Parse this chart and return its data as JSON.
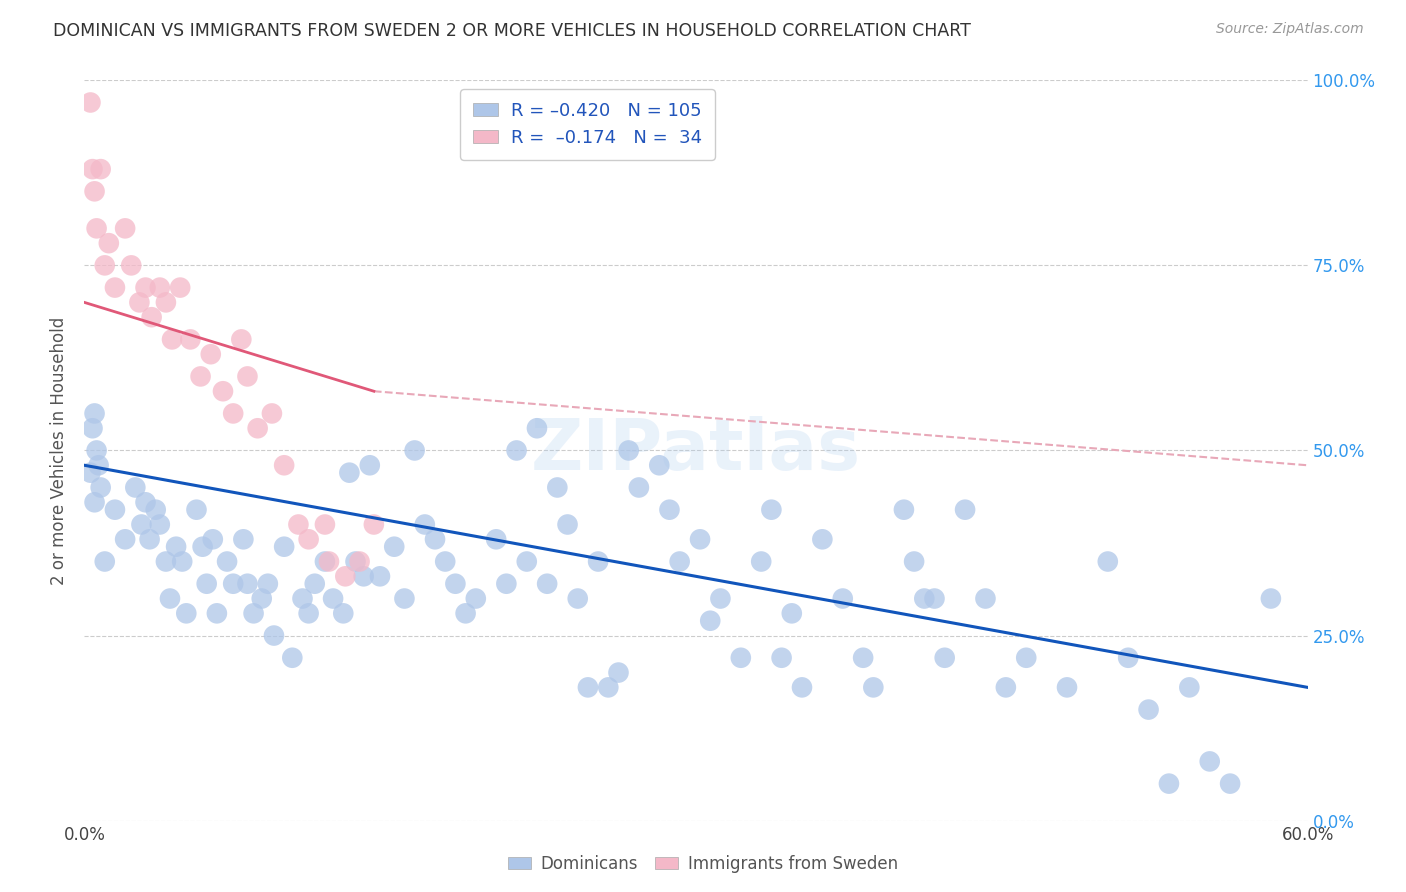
{
  "title": "DOMINICAN VS IMMIGRANTS FROM SWEDEN 2 OR MORE VEHICLES IN HOUSEHOLD CORRELATION CHART",
  "source": "Source: ZipAtlas.com",
  "ylabel_label": "2 or more Vehicles in Household",
  "xlim": [
    0,
    60
  ],
  "ylim": [
    0,
    100
  ],
  "blue_R": -0.42,
  "blue_N": 105,
  "pink_R": -0.174,
  "pink_N": 34,
  "blue_color": "#aec6e8",
  "blue_line_color": "#1155bb",
  "pink_color": "#f4b8c8",
  "pink_line_color": "#e05878",
  "pink_dashed_color": "#e8a8b8",
  "ytick_vals": [
    0,
    25,
    50,
    75,
    100
  ],
  "ytick_labels": [
    "0.0%",
    "25.0%",
    "50.0%",
    "75.0%",
    "100.0%"
  ],
  "xtick_vals": [
    0,
    60
  ],
  "xtick_labels": [
    "0.0%",
    "60.0%"
  ],
  "blue_scatter": [
    [
      0.3,
      47
    ],
    [
      0.4,
      53
    ],
    [
      0.5,
      43
    ],
    [
      0.5,
      55
    ],
    [
      0.6,
      50
    ],
    [
      0.7,
      48
    ],
    [
      0.8,
      45
    ],
    [
      1.0,
      35
    ],
    [
      1.5,
      42
    ],
    [
      2.0,
      38
    ],
    [
      2.5,
      45
    ],
    [
      2.8,
      40
    ],
    [
      3.0,
      43
    ],
    [
      3.2,
      38
    ],
    [
      3.5,
      42
    ],
    [
      3.7,
      40
    ],
    [
      4.0,
      35
    ],
    [
      4.2,
      30
    ],
    [
      4.5,
      37
    ],
    [
      4.8,
      35
    ],
    [
      5.0,
      28
    ],
    [
      5.5,
      42
    ],
    [
      5.8,
      37
    ],
    [
      6.0,
      32
    ],
    [
      6.3,
      38
    ],
    [
      6.5,
      28
    ],
    [
      7.0,
      35
    ],
    [
      7.3,
      32
    ],
    [
      7.8,
      38
    ],
    [
      8.0,
      32
    ],
    [
      8.3,
      28
    ],
    [
      8.7,
      30
    ],
    [
      9.0,
      32
    ],
    [
      9.3,
      25
    ],
    [
      9.8,
      37
    ],
    [
      10.2,
      22
    ],
    [
      10.7,
      30
    ],
    [
      11.0,
      28
    ],
    [
      11.3,
      32
    ],
    [
      11.8,
      35
    ],
    [
      12.2,
      30
    ],
    [
      12.7,
      28
    ],
    [
      13.0,
      47
    ],
    [
      13.3,
      35
    ],
    [
      13.7,
      33
    ],
    [
      14.0,
      48
    ],
    [
      14.5,
      33
    ],
    [
      15.2,
      37
    ],
    [
      15.7,
      30
    ],
    [
      16.2,
      50
    ],
    [
      16.7,
      40
    ],
    [
      17.2,
      38
    ],
    [
      17.7,
      35
    ],
    [
      18.2,
      32
    ],
    [
      18.7,
      28
    ],
    [
      19.2,
      30
    ],
    [
      20.2,
      38
    ],
    [
      20.7,
      32
    ],
    [
      21.2,
      50
    ],
    [
      21.7,
      35
    ],
    [
      22.2,
      53
    ],
    [
      22.7,
      32
    ],
    [
      23.2,
      45
    ],
    [
      23.7,
      40
    ],
    [
      24.2,
      30
    ],
    [
      24.7,
      18
    ],
    [
      25.2,
      35
    ],
    [
      25.7,
      18
    ],
    [
      26.2,
      20
    ],
    [
      26.7,
      50
    ],
    [
      27.2,
      45
    ],
    [
      28.2,
      48
    ],
    [
      28.7,
      42
    ],
    [
      29.2,
      35
    ],
    [
      30.2,
      38
    ],
    [
      30.7,
      27
    ],
    [
      31.2,
      30
    ],
    [
      32.2,
      22
    ],
    [
      33.2,
      35
    ],
    [
      33.7,
      42
    ],
    [
      34.2,
      22
    ],
    [
      34.7,
      28
    ],
    [
      35.2,
      18
    ],
    [
      36.2,
      38
    ],
    [
      37.2,
      30
    ],
    [
      38.2,
      22
    ],
    [
      38.7,
      18
    ],
    [
      40.2,
      42
    ],
    [
      40.7,
      35
    ],
    [
      41.2,
      30
    ],
    [
      41.7,
      30
    ],
    [
      42.2,
      22
    ],
    [
      43.2,
      42
    ],
    [
      44.2,
      30
    ],
    [
      45.2,
      18
    ],
    [
      46.2,
      22
    ],
    [
      48.2,
      18
    ],
    [
      50.2,
      35
    ],
    [
      51.2,
      22
    ],
    [
      52.2,
      15
    ],
    [
      53.2,
      5
    ],
    [
      54.2,
      18
    ],
    [
      55.2,
      8
    ],
    [
      56.2,
      5
    ],
    [
      58.2,
      30
    ]
  ],
  "pink_scatter": [
    [
      0.3,
      97
    ],
    [
      0.4,
      88
    ],
    [
      0.5,
      85
    ],
    [
      0.6,
      80
    ],
    [
      0.8,
      88
    ],
    [
      1.0,
      75
    ],
    [
      1.2,
      78
    ],
    [
      1.5,
      72
    ],
    [
      2.0,
      80
    ],
    [
      2.3,
      75
    ],
    [
      2.7,
      70
    ],
    [
      3.0,
      72
    ],
    [
      3.3,
      68
    ],
    [
      3.7,
      72
    ],
    [
      4.0,
      70
    ],
    [
      4.3,
      65
    ],
    [
      4.7,
      72
    ],
    [
      5.2,
      65
    ],
    [
      5.7,
      60
    ],
    [
      6.2,
      63
    ],
    [
      6.8,
      58
    ],
    [
      7.3,
      55
    ],
    [
      7.7,
      65
    ],
    [
      8.0,
      60
    ],
    [
      8.5,
      53
    ],
    [
      9.2,
      55
    ],
    [
      9.8,
      48
    ],
    [
      10.5,
      40
    ],
    [
      11.0,
      38
    ],
    [
      11.8,
      40
    ],
    [
      12.0,
      35
    ],
    [
      12.8,
      33
    ],
    [
      13.5,
      35
    ],
    [
      14.2,
      40
    ]
  ],
  "watermark": "ZIPatlas"
}
